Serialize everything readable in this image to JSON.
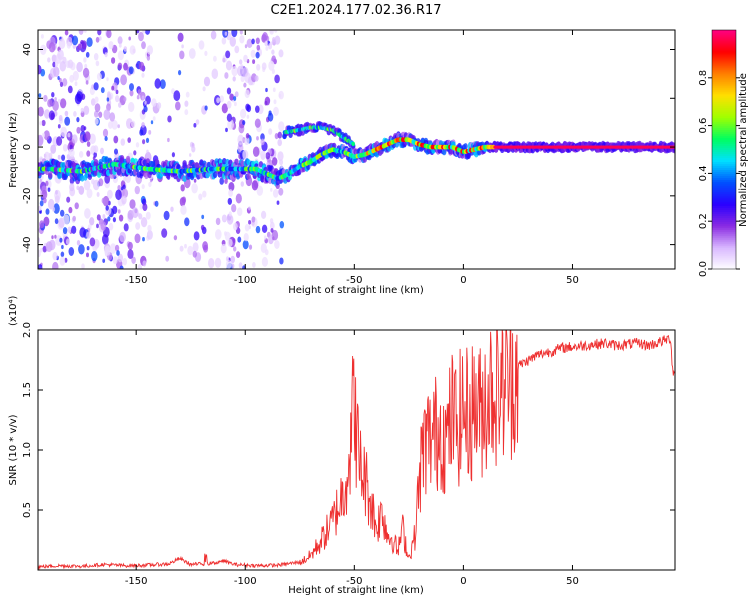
{
  "title": "C2E1.2024.177.02.36.R17",
  "chart_data": [
    {
      "type": "heatmap",
      "xlabel": "Height of straight line (km)",
      "ylabel": "Frequency (Hz)",
      "xlim": [
        -195,
        97
      ],
      "ylim": [
        -50,
        48
      ],
      "xticks": [
        -150,
        -100,
        -50,
        0,
        50
      ],
      "yticks": [
        -40,
        -20,
        0,
        20,
        40
      ],
      "colorbar": {
        "label": "Normalized spectral amplitude",
        "range": [
          0.0,
          1.0
        ],
        "ticks": [
          0.0,
          0.2,
          0.4,
          0.6,
          0.8
        ],
        "colors": [
          "#ffffff",
          "#d9b8ff",
          "#8a2be2",
          "#2a00ff",
          "#0050ff",
          "#00e0ff",
          "#00ff60",
          "#a0ff00",
          "#ffe000",
          "#ff8000",
          "#ff0000",
          "#ff0080"
        ]
      },
      "ridge": {
        "x": [
          -190,
          -175,
          -160,
          -145,
          -130,
          -115,
          -105,
          -95,
          -85,
          -80,
          -75,
          -70,
          -65,
          -60,
          -55,
          -50,
          -45,
          -40,
          -35,
          -30,
          -25,
          -20,
          -15,
          -10,
          -5,
          0,
          5,
          10,
          15,
          30,
          50,
          70,
          90,
          96
        ],
        "y": [
          -9,
          -10,
          -7,
          -9,
          -10,
          -9,
          -9,
          -9,
          -13,
          -11,
          -8,
          -6,
          -3,
          -1,
          -2,
          -4,
          -3,
          -1,
          1,
          3,
          3,
          1,
          0,
          0,
          0,
          -2,
          -1,
          0,
          0,
          0,
          0,
          0,
          0,
          0
        ]
      },
      "upper_branch": {
        "x": [
          -82,
          -75,
          -70,
          -65,
          -60,
          -55,
          -50
        ],
        "y": [
          6,
          7,
          8,
          8,
          7,
          4,
          1
        ]
      }
    },
    {
      "type": "line",
      "xlabel": "Height of straight line (km)",
      "ylabel": "SNR (10 * v/v)",
      "y_exponent": "(x10⁴)",
      "xlim": [
        -195,
        97
      ],
      "ylim": [
        0,
        20000
      ],
      "xticks": [
        -150,
        -100,
        -50,
        0,
        50
      ],
      "yticks": [
        5000,
        10000,
        15000,
        20000
      ],
      "ytick_labels": [
        "0.5",
        "1.0",
        "1.5",
        "2.0"
      ],
      "color": "#ee3030",
      "series": [
        {
          "x": [
            -195,
            -185,
            -175,
            -165,
            -155,
            -145,
            -135,
            -130,
            -125,
            -115,
            -110,
            -105,
            -95,
            -85,
            -75,
            -70,
            -65,
            -60,
            -55,
            -52,
            -50,
            -48,
            -45,
            -42,
            -40,
            -37,
            -35,
            -32,
            -30,
            -28,
            -25,
            -22,
            -20,
            -18,
            -15,
            -12,
            -10,
            -8,
            -5,
            -3,
            0,
            3,
            5,
            8,
            10,
            12,
            15,
            20,
            25,
            30,
            35,
            40,
            45,
            50,
            55,
            60,
            65,
            70,
            75,
            80,
            85,
            90,
            95,
            96
          ],
          "y": [
            200,
            300,
            250,
            400,
            300,
            350,
            450,
            900,
            400,
            500,
            700,
            400,
            300,
            350,
            600,
            1200,
            2500,
            4000,
            6500,
            10000,
            14500,
            9000,
            7500,
            5500,
            3500,
            5000,
            3000,
            2500,
            1500,
            3500,
            1000,
            3000,
            8000,
            10500,
            11000,
            11500,
            12000,
            10500,
            13000,
            12000,
            13500,
            12500,
            14000,
            13000,
            14500,
            15000,
            15500,
            16000,
            17000,
            17500,
            18000,
            18200,
            18500,
            18600,
            18700,
            18800,
            18900,
            18700,
            18800,
            18900,
            18700,
            19000,
            19300,
            16500
          ]
        }
      ]
    }
  ]
}
